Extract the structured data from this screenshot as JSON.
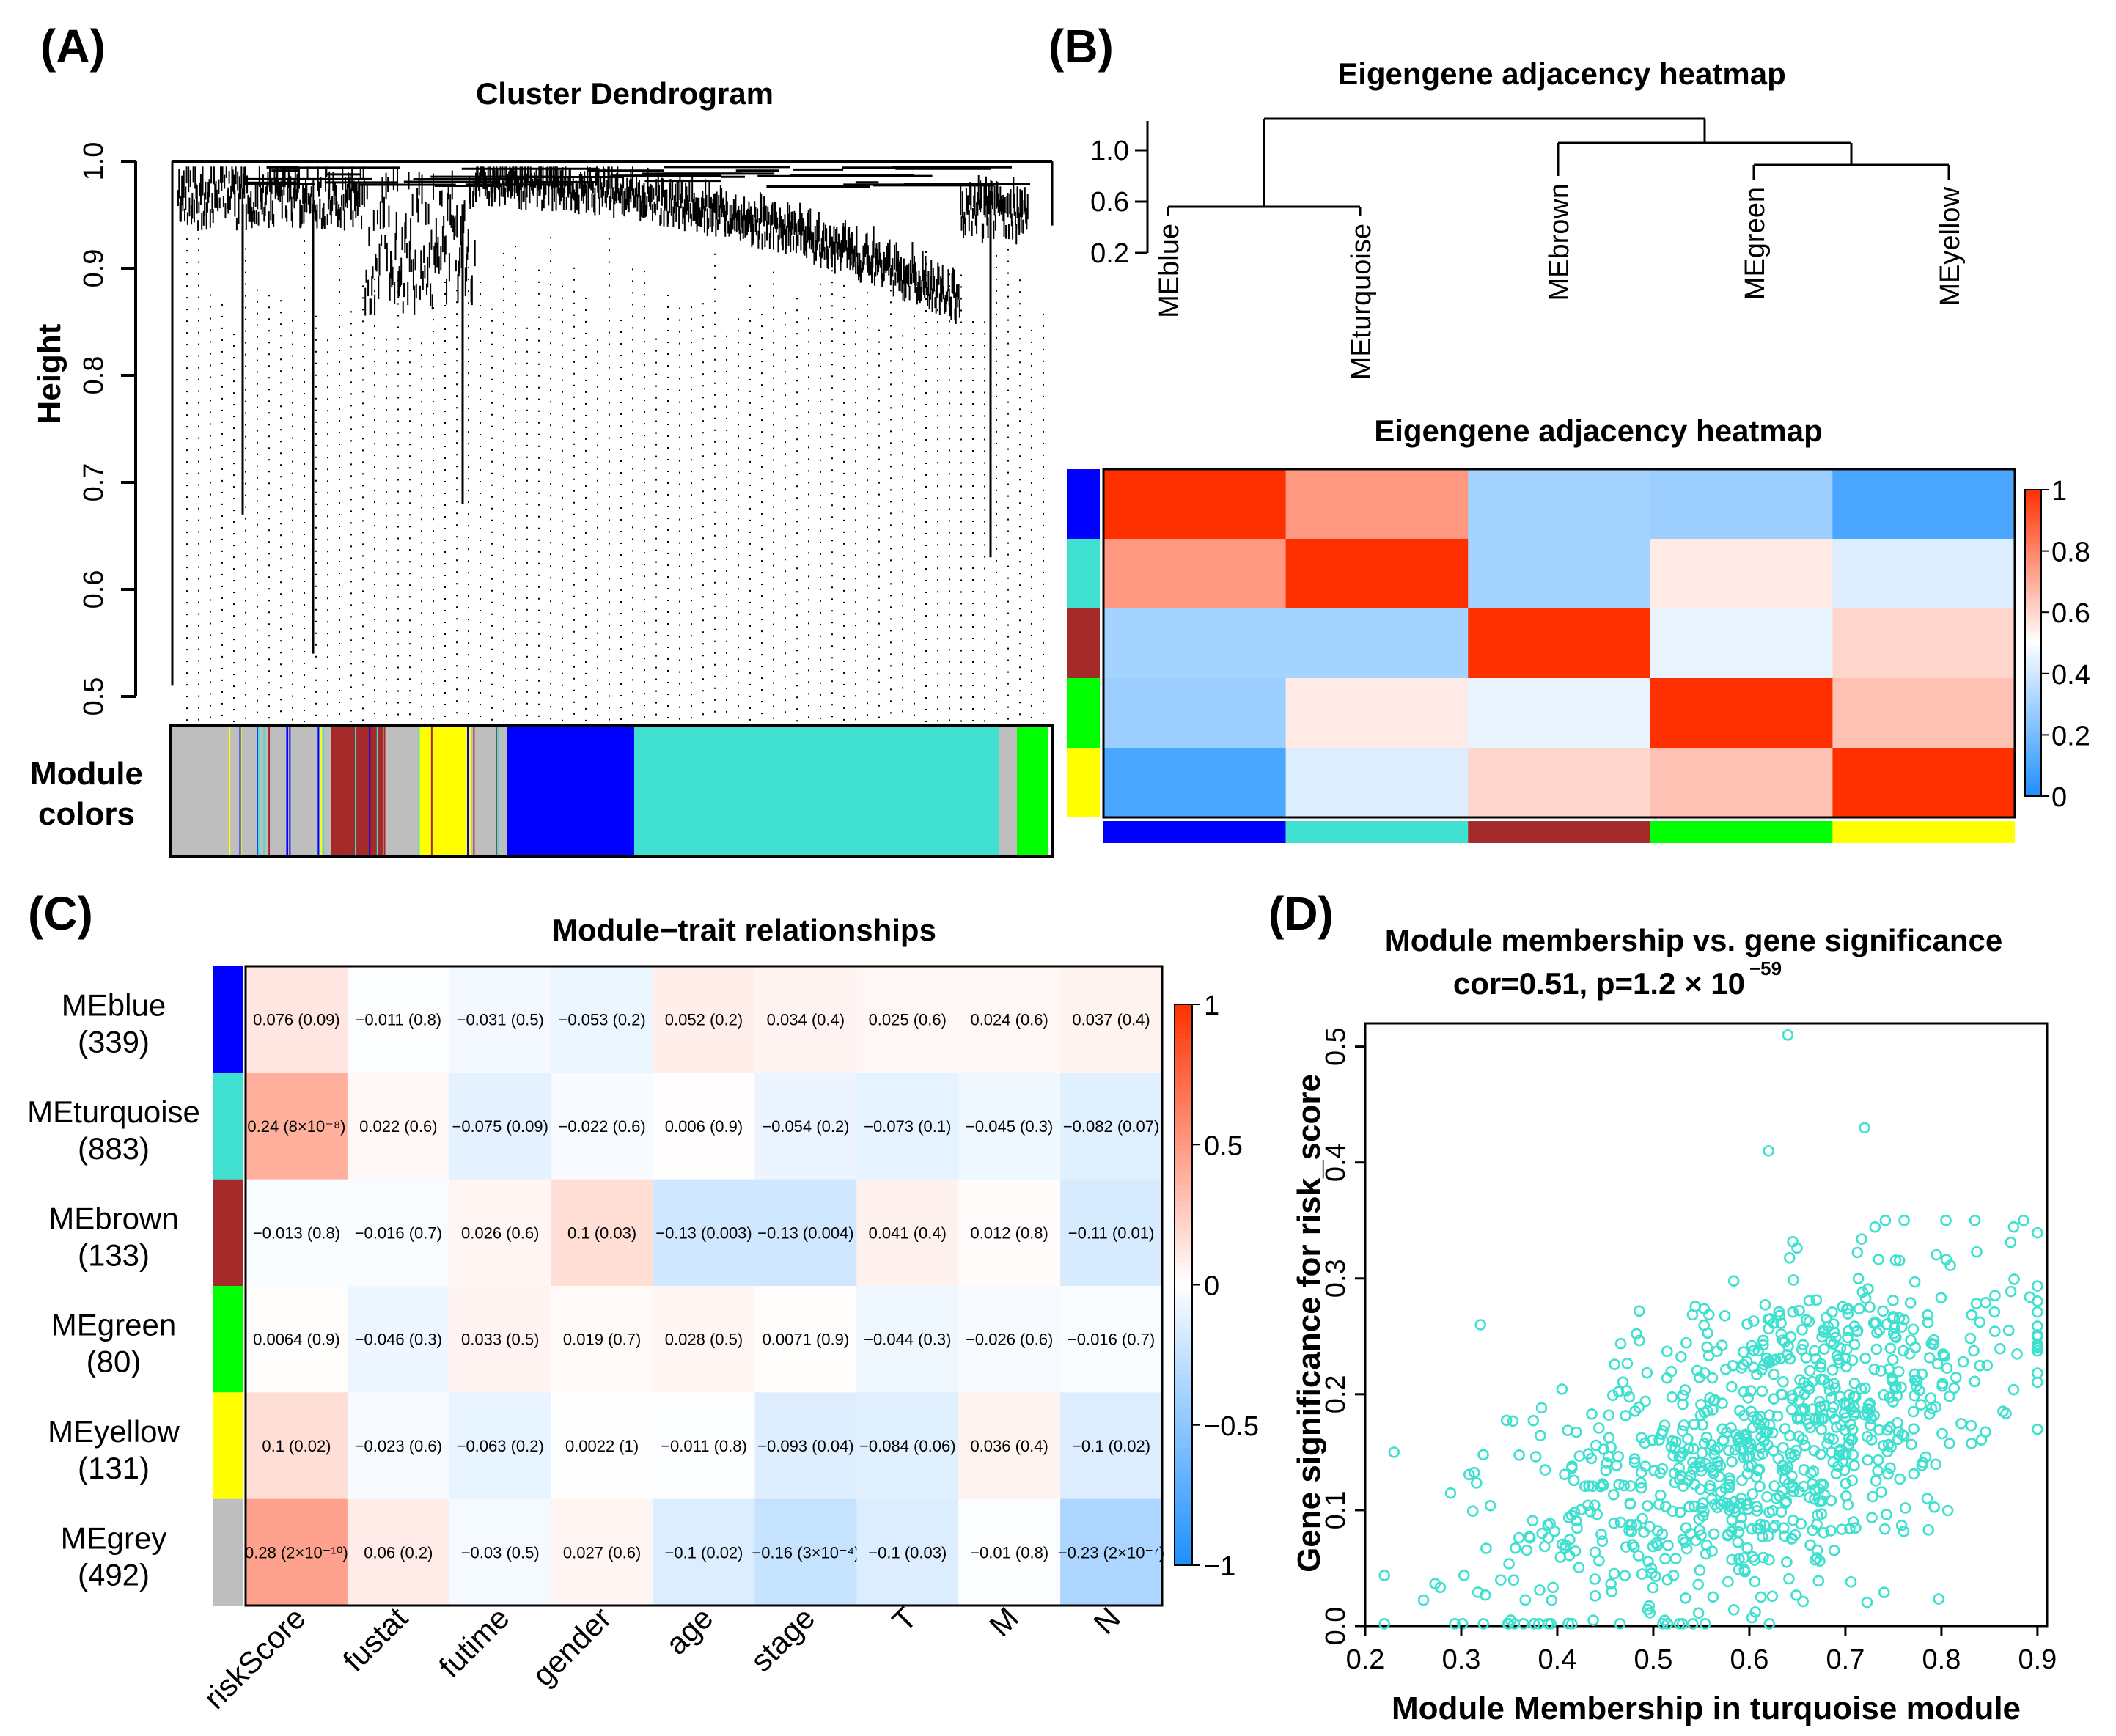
{
  "panels": {
    "A": {
      "label": "(A)"
    },
    "B": {
      "label": "(B)"
    },
    "C": {
      "label": "(C)"
    },
    "D": {
      "label": "(D)"
    }
  },
  "chart_data": [
    {
      "id": "A",
      "type": "dendrogram",
      "title": "Cluster Dendrogram",
      "ylabel": "Height",
      "ylim": [
        0.5,
        1.0
      ],
      "yticks": [
        "0.5",
        "0.6",
        "0.7",
        "0.8",
        "0.9",
        "1.0"
      ],
      "module_colors_label_line1": "Module",
      "module_colors_label_line2": "colors",
      "module_colors": [
        {
          "color": "#bebebe",
          "frac": 0.18
        },
        {
          "color": "#a52a2a",
          "frac": 0.06
        },
        {
          "color": "#bebebe",
          "frac": 0.04
        },
        {
          "color": "#ffff00",
          "frac": 0.06
        },
        {
          "color": "#bebebe",
          "frac": 0.04
        },
        {
          "color": "#0000ff",
          "frac": 0.145
        },
        {
          "color": "#40e0d0",
          "frac": 0.415
        },
        {
          "color": "#bebebe",
          "frac": 0.02
        },
        {
          "color": "#00ff00",
          "frac": 0.035
        }
      ],
      "deep_branches": [
        {
          "x": 0.08,
          "h": 0.67
        },
        {
          "x": 0.16,
          "h": 0.54
        },
        {
          "x": 0.33,
          "h": 0.68
        },
        {
          "x": 0.93,
          "h": 0.63
        }
      ]
    },
    {
      "id": "B-dendrogram",
      "type": "dendrogram",
      "title": "Eigengene adjacency heatmap",
      "yticks": [
        "0.2",
        "0.6",
        "1.0"
      ],
      "leaves": [
        "MEblue",
        "MEturquoise",
        "MEbrown",
        "MEgreen",
        "MEyellow"
      ]
    },
    {
      "id": "B-heatmap",
      "type": "heatmap",
      "title": "Eigengene adjacency heatmap",
      "rows": [
        "MEblue",
        "MEturquoise",
        "MEbrown",
        "MEgreen",
        "MEyellow"
      ],
      "row_colors": [
        "#0000ff",
        "#40e0d0",
        "#a52a2a",
        "#00ff00",
        "#ffff00"
      ],
      "values": [
        [
          1.0,
          0.75,
          0.3,
          0.28,
          0.1
        ],
        [
          0.75,
          1.0,
          0.3,
          0.55,
          0.42
        ],
        [
          0.3,
          0.3,
          1.0,
          0.45,
          0.6
        ],
        [
          0.28,
          0.55,
          0.45,
          1.0,
          0.65
        ],
        [
          0.1,
          0.42,
          0.6,
          0.65,
          1.0
        ]
      ],
      "colorbar_ticks": [
        "0",
        "0.2",
        "0.4",
        "0.6",
        "0.8",
        "1"
      ],
      "colorbar_range": [
        0,
        1
      ]
    },
    {
      "id": "C",
      "type": "heatmap",
      "title": "Module−trait relationships",
      "rows": [
        {
          "name": "MEblue",
          "count": "(339)",
          "color": "#0000ff"
        },
        {
          "name": "MEturquoise",
          "count": "(883)",
          "color": "#40e0d0"
        },
        {
          "name": "MEbrown",
          "count": "(133)",
          "color": "#a52a2a"
        },
        {
          "name": "MEgreen",
          "count": "(80)",
          "color": "#00ff00"
        },
        {
          "name": "MEyellow",
          "count": "(131)",
          "color": "#ffff00"
        },
        {
          "name": "MEgrey",
          "count": "(492)",
          "color": "#bebebe"
        }
      ],
      "columns": [
        "riskScore",
        "fustat",
        "futime",
        "gender",
        "age",
        "stage",
        "T",
        "M",
        "N"
      ],
      "values": [
        [
          0.076,
          -0.011,
          -0.031,
          -0.053,
          0.052,
          0.034,
          0.025,
          0.024,
          0.037
        ],
        [
          0.24,
          0.022,
          -0.075,
          -0.022,
          0.006,
          -0.054,
          -0.073,
          -0.045,
          -0.082
        ],
        [
          -0.013,
          -0.016,
          0.026,
          0.1,
          -0.13,
          -0.13,
          0.041,
          0.012,
          -0.11
        ],
        [
          0.0064,
          -0.046,
          0.033,
          0.019,
          0.028,
          0.0071,
          -0.044,
          -0.026,
          -0.016
        ],
        [
          0.1,
          -0.023,
          -0.063,
          0.0022,
          -0.011,
          -0.093,
          -0.084,
          0.036,
          -0.1
        ],
        [
          0.28,
          0.06,
          -0.03,
          0.027,
          -0.1,
          -0.16,
          -0.1,
          -0.01,
          -0.23
        ]
      ],
      "labels": [
        [
          "0.076 (0.09)",
          "−0.011 (0.8)",
          "−0.031 (0.5)",
          "−0.053 (0.2)",
          "0.052 (0.2)",
          "0.034 (0.4)",
          "0.025 (0.6)",
          "0.024 (0.6)",
          "0.037 (0.4)"
        ],
        [
          "0.24 (8×10⁻⁸)",
          "0.022 (0.6)",
          "−0.075 (0.09)",
          "−0.022 (0.6)",
          "0.006 (0.9)",
          "−0.054 (0.2)",
          "−0.073 (0.1)",
          "−0.045 (0.3)",
          "−0.082 (0.07)"
        ],
        [
          "−0.013 (0.8)",
          "−0.016 (0.7)",
          "0.026 (0.6)",
          "0.1 (0.03)",
          "−0.13 (0.003)",
          "−0.13 (0.004)",
          "0.041 (0.4)",
          "0.012 (0.8)",
          "−0.11 (0.01)"
        ],
        [
          "0.0064 (0.9)",
          "−0.046 (0.3)",
          "0.033 (0.5)",
          "0.019 (0.7)",
          "0.028 (0.5)",
          "0.0071 (0.9)",
          "−0.044 (0.3)",
          "−0.026 (0.6)",
          "−0.016 (0.7)"
        ],
        [
          "0.1 (0.02)",
          "−0.023 (0.6)",
          "−0.063 (0.2)",
          "0.0022 (1)",
          "−0.011 (0.8)",
          "−0.093 (0.04)",
          "−0.084 (0.06)",
          "0.036 (0.4)",
          "−0.1 (0.02)"
        ],
        [
          "0.28 (2×10⁻¹⁰)",
          "0.06 (0.2)",
          "−0.03 (0.5)",
          "0.027 (0.6)",
          "−0.1 (0.02)",
          "−0.16 (3×10⁻⁴)",
          "−0.1 (0.03)",
          "−0.01 (0.8)",
          "−0.23 (2×10⁻⁷)"
        ]
      ],
      "colorbar_ticks": [
        "1",
        "0.5",
        "0",
        "−0.5",
        "−1"
      ],
      "colorbar_range": [
        -1,
        1
      ]
    },
    {
      "id": "D",
      "type": "scatter",
      "title": "Module membership vs. gene significance",
      "subtitle_prefix": "cor=0.51, p=1.2 × 10",
      "subtitle_exponent": "−59",
      "xlabel": "Module Membership in turquoise module",
      "ylabel": "Gene significance for risk_score",
      "xlim": [
        0.2,
        0.91
      ],
      "ylim": [
        0.0,
        0.52
      ],
      "xticks": [
        "0.2",
        "0.3",
        "0.4",
        "0.5",
        "0.6",
        "0.7",
        "0.8",
        "0.9"
      ],
      "yticks": [
        "0.0",
        "0.1",
        "0.2",
        "0.3",
        "0.4",
        "0.5"
      ],
      "point_color": "#40e0d0",
      "n_points": 883,
      "cor": 0.51,
      "highlighted_points": [
        {
          "x": 0.64,
          "y": 0.51
        },
        {
          "x": 0.72,
          "y": 0.43
        },
        {
          "x": 0.62,
          "y": 0.41
        },
        {
          "x": 0.23,
          "y": 0.15
        },
        {
          "x": 0.9,
          "y": 0.25
        },
        {
          "x": 0.32,
          "y": 0.26
        }
      ]
    }
  ]
}
